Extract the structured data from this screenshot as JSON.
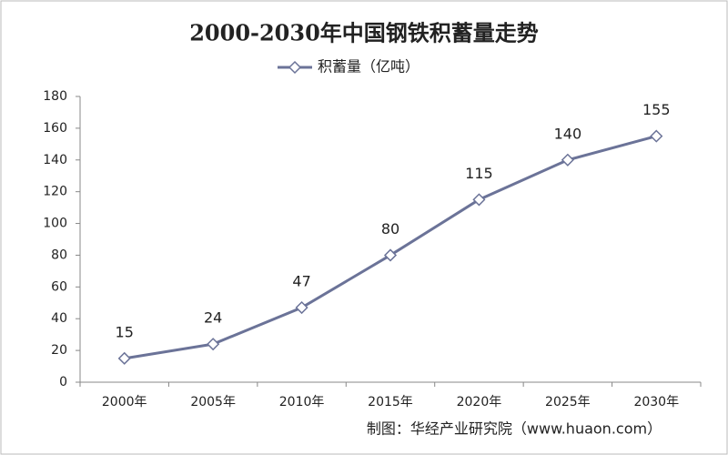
{
  "chart_data": {
    "type": "line",
    "title": "2000-2030年中国钢铁积蓄量走势",
    "categories": [
      "2000年",
      "2005年",
      "2010年",
      "2015年",
      "2020年",
      "2025年",
      "2030年"
    ],
    "series": [
      {
        "name": "积蓄量（亿吨）",
        "color": "#6b7398",
        "values": [
          15,
          24,
          47,
          80,
          115,
          140,
          155
        ]
      }
    ],
    "ylim": [
      0,
      180
    ],
    "yticks": [
      0,
      20,
      40,
      60,
      80,
      100,
      120,
      140,
      160,
      180
    ],
    "source": "制图：华经产业研究院（www.huaon.com）"
  }
}
